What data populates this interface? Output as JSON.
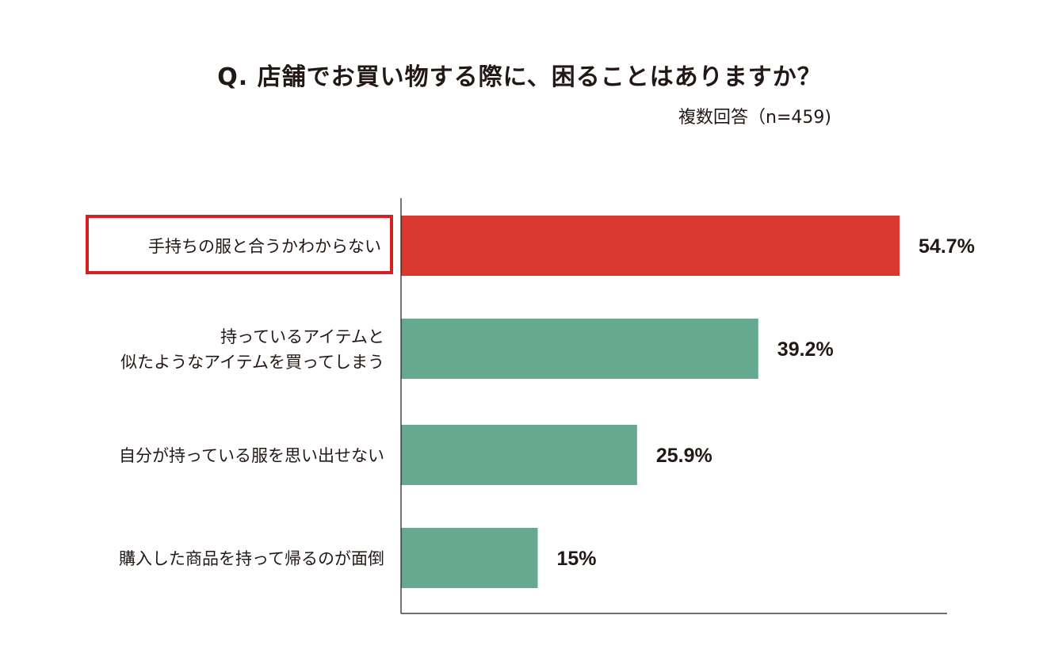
{
  "title": "Q. 店舗でお買い物する際に、困ることはありますか？",
  "subtitle": "複数回答（n=459)",
  "colors": {
    "highlight": "#D9382E",
    "bar": "#64A990",
    "highlight_box": "#D42027",
    "axis": "#231815",
    "text": "#231815"
  },
  "chart_data": {
    "type": "bar",
    "orientation": "horizontal",
    "categories": [
      [
        "手持ちの服と合うかわからない"
      ],
      [
        "持っているアイテムと",
        "似たようなアイテムを買ってしまう"
      ],
      [
        "自分が持っている服を思い出せない"
      ],
      [
        "購入した商品を持って帰るのが面倒"
      ]
    ],
    "values": [
      54.7,
      39.2,
      25.9,
      15
    ],
    "value_labels": [
      "54.7%",
      "39.2%",
      "25.9%",
      "15%"
    ],
    "highlighted_index": 0,
    "xlim": [
      0,
      60
    ],
    "grid": false,
    "legend": "none"
  }
}
